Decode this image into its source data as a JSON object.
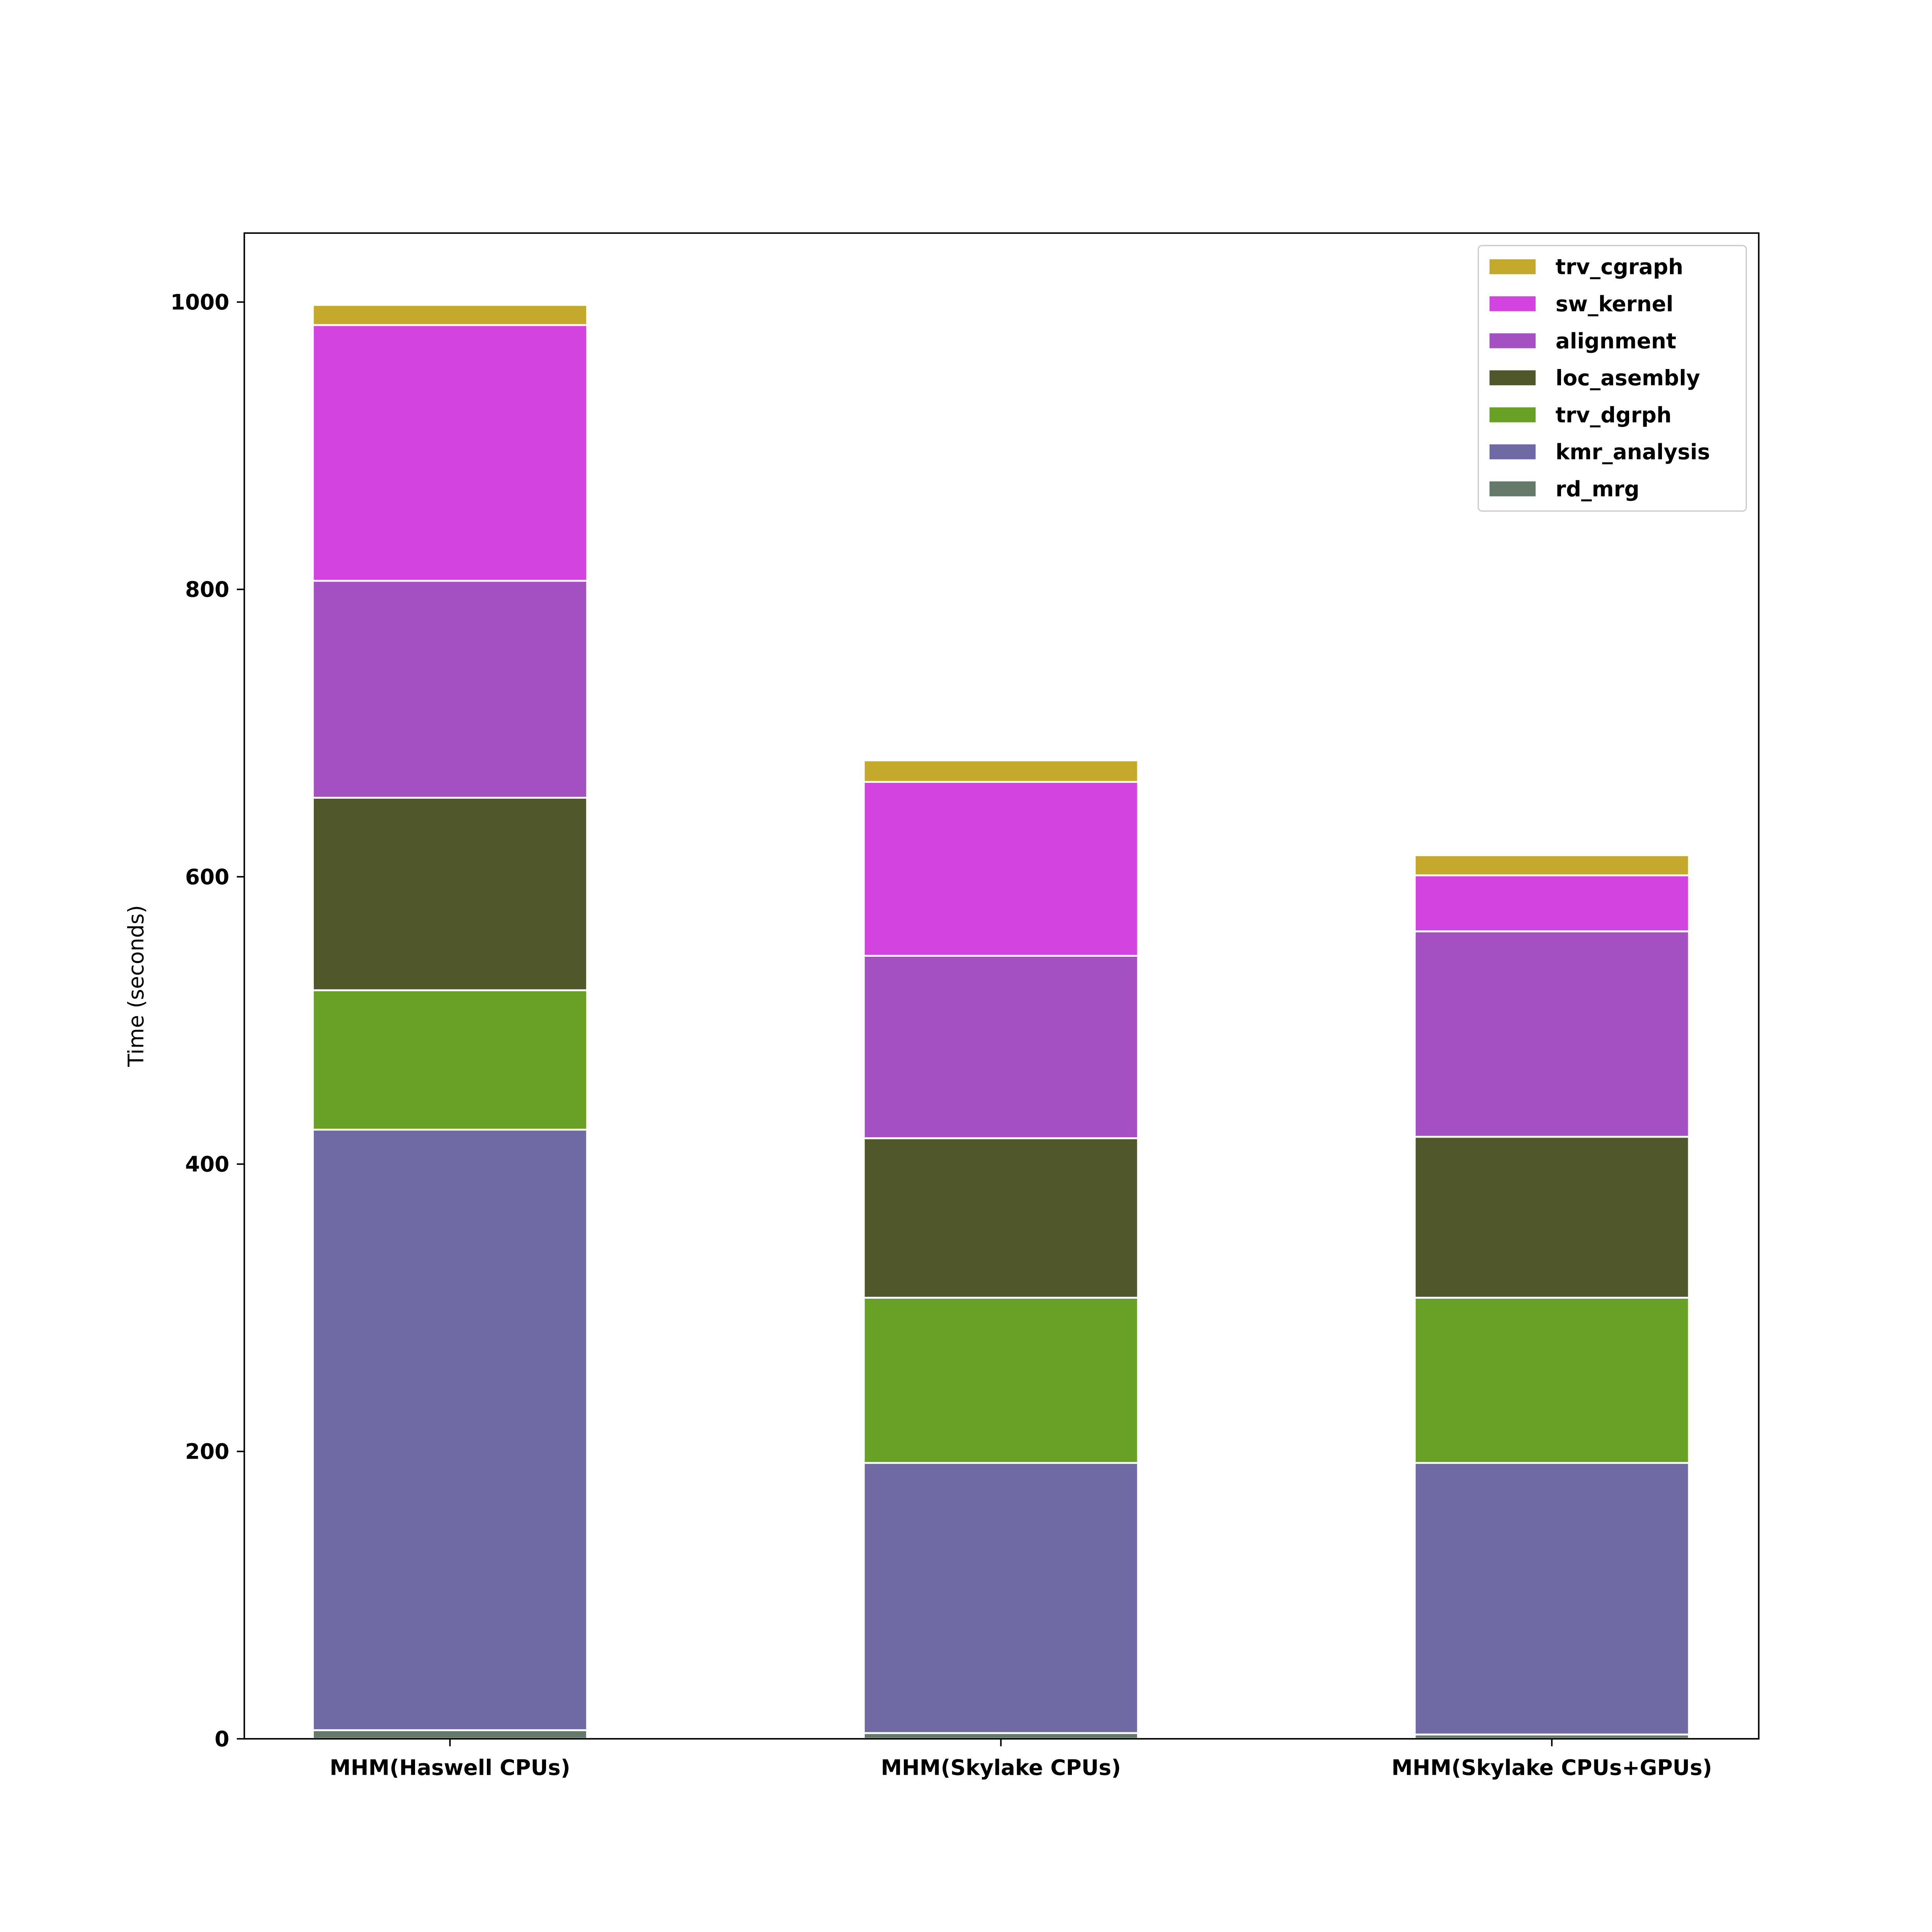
{
  "chart_data": {
    "type": "bar",
    "stacked": true,
    "title": "",
    "xlabel": "",
    "ylabel": "Time (seconds)",
    "ylim": [
      0,
      1048
    ],
    "yticks": [
      0,
      200,
      400,
      600,
      800,
      1000
    ],
    "grid": false,
    "legend_placement": "top-right",
    "categories": [
      "MHM(Haswell CPUs)",
      "MHM(Skylake CPUs)",
      "MHM(Skylake CPUs+GPUs)"
    ],
    "series": [
      {
        "name": "rd_mrg",
        "color": "#667a6b",
        "values": [
          6,
          4,
          3
        ]
      },
      {
        "name": "kmr_analysis",
        "color": "#6f69a4",
        "values": [
          418,
          188,
          189
        ]
      },
      {
        "name": "trv_dgrph",
        "color": "#69a127",
        "values": [
          97,
          115,
          115
        ]
      },
      {
        "name": "loc_asembly",
        "color": "#50572b",
        "values": [
          134,
          111,
          112
        ]
      },
      {
        "name": "alignment",
        "color": "#a550c2",
        "values": [
          151,
          127,
          143
        ]
      },
      {
        "name": "sw_kernel",
        "color": "#d343e0",
        "values": [
          178,
          121,
          39
        ]
      },
      {
        "name": "trv_cgraph",
        "color": "#c4a92c",
        "values": [
          14,
          15,
          14
        ]
      }
    ]
  }
}
